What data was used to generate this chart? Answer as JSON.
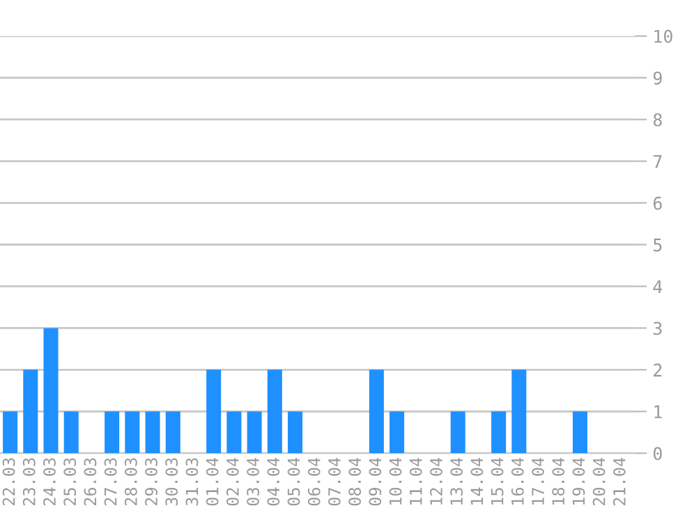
{
  "chart_data": {
    "type": "bar",
    "categories": [
      "22.03",
      "23.03",
      "24.03",
      "25.03",
      "26.03",
      "27.03",
      "28.03",
      "29.03",
      "30.03",
      "31.03",
      "01.04",
      "02.04",
      "03.04",
      "04.04",
      "05.04",
      "06.04",
      "07.04",
      "08.04",
      "09.04",
      "10.04",
      "11.04",
      "12.04",
      "13.04",
      "14.04",
      "15.04",
      "16.04",
      "17.04",
      "18.04",
      "19.04",
      "20.04",
      "21.04"
    ],
    "values": [
      1,
      2,
      3,
      1,
      0,
      1,
      1,
      1,
      1,
      0,
      2,
      1,
      1,
      2,
      1,
      0,
      0,
      0,
      2,
      1,
      0,
      0,
      1,
      0,
      1,
      2,
      0,
      0,
      1,
      0,
      0
    ],
    "color": "#1e90ff",
    "ylim": [
      0,
      10
    ],
    "yticks": [
      0,
      1,
      2,
      3,
      4,
      5,
      6,
      7,
      8,
      9,
      10
    ],
    "grid": "y"
  }
}
